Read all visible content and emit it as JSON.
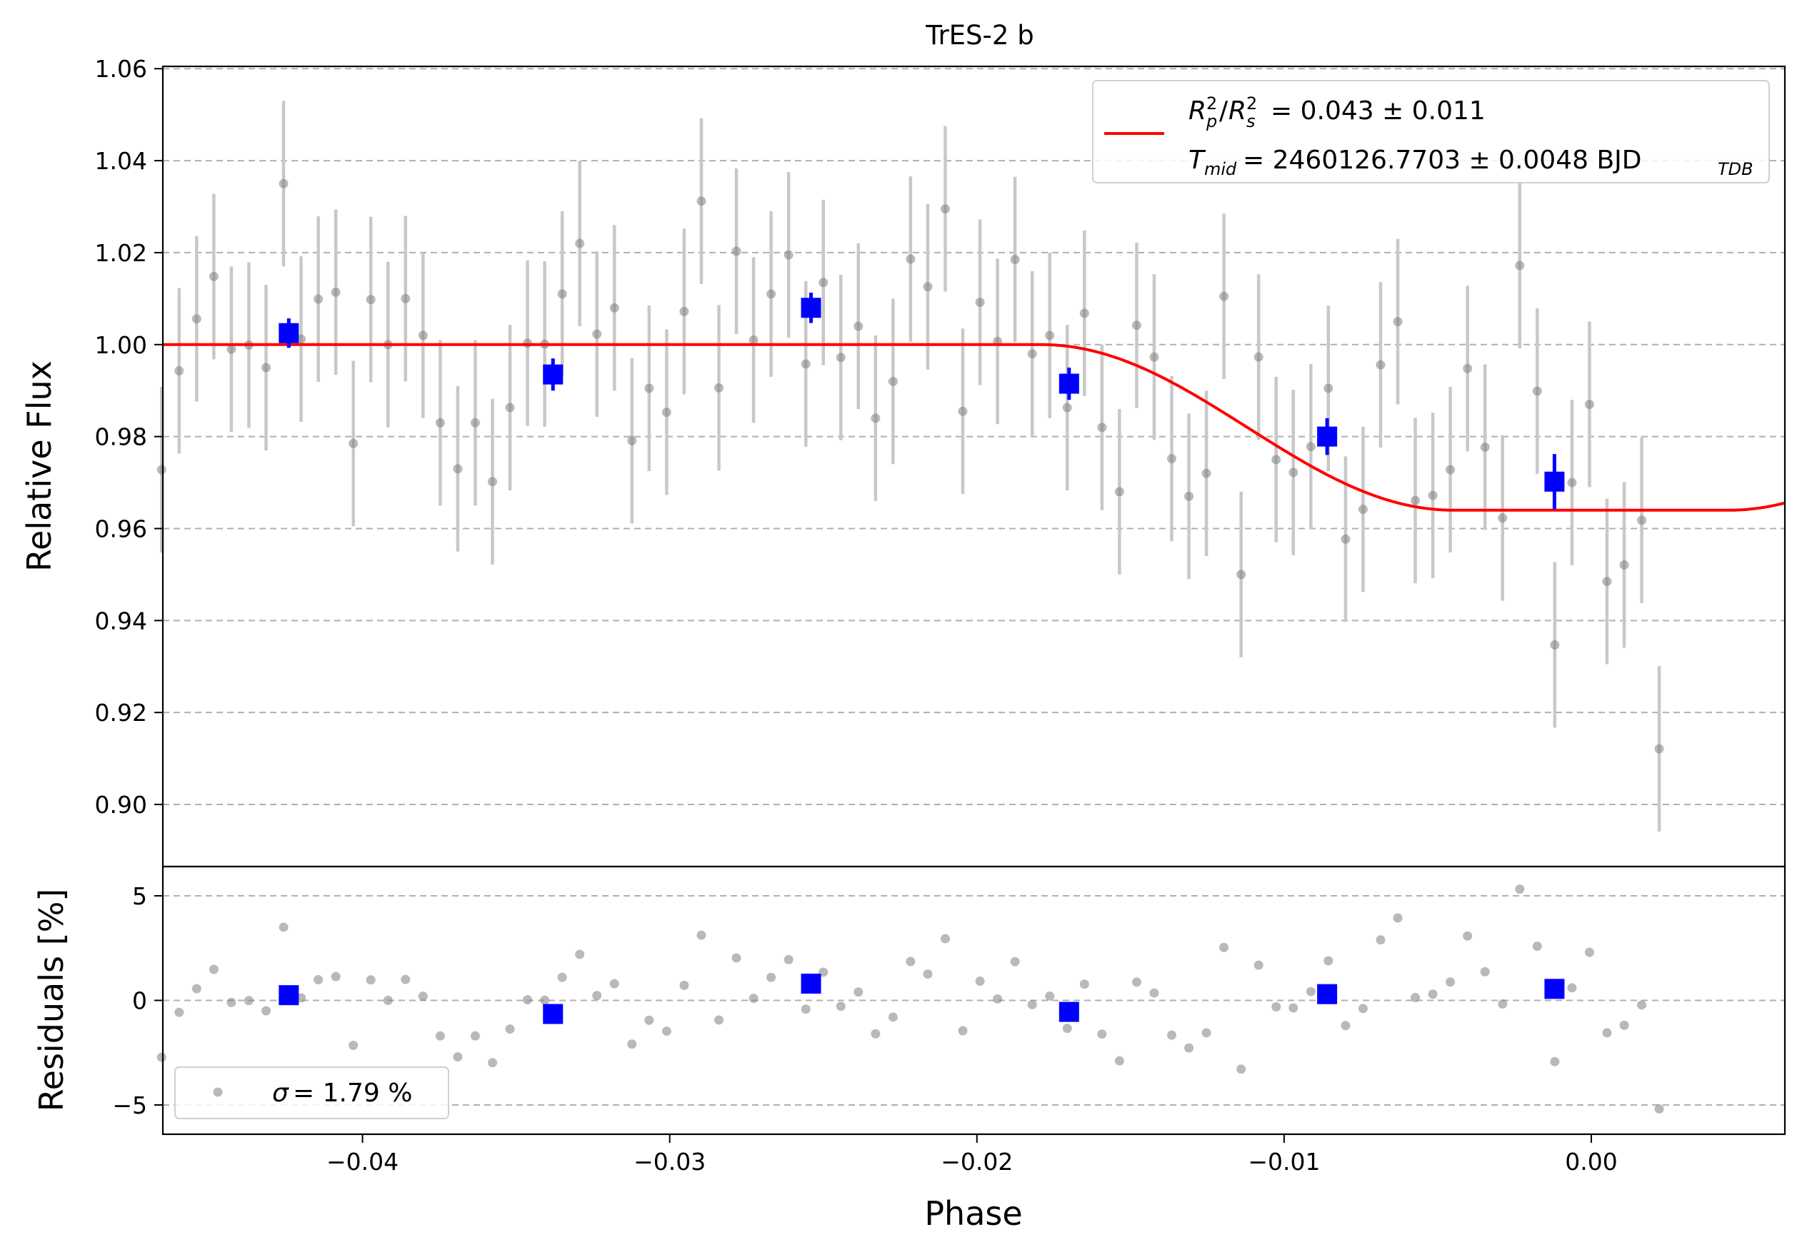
{
  "chart_data": [
    {
      "panel": "lightcurve",
      "type": "scatter",
      "title": "TrES-2 b",
      "xlabel": "",
      "ylabel": "Relative Flux",
      "xlim": [
        -0.0465,
        0.0063
      ],
      "ylim": [
        0.8865,
        1.0605
      ],
      "yticks": [
        0.9,
        0.92,
        0.94,
        0.96,
        0.98,
        1.0,
        1.02,
        1.04,
        1.06
      ],
      "ytick_labels": [
        "0.90",
        "0.92",
        "0.94",
        "0.96",
        "0.98",
        "1.00",
        "1.02",
        "1.04",
        "1.06"
      ],
      "grid": "horizontal dashed",
      "legend_position": "top-right",
      "colors": {
        "raw": "#808080",
        "errorbar": "#c8c8c8",
        "binned": "#0000ff",
        "model": "#ff0000"
      },
      "legend": {
        "ratio_label": "Rp2/Rs2",
        "ratio_value": "= 0.043 ± 0.011",
        "tmid_label": "Tmid",
        "tmid_value": "= 2460126.7703 ± 0.0048 BJD",
        "tmid_sub": "TDB"
      },
      "model": {
        "baseline": 1.0,
        "depth": 0.036,
        "t1": -0.0179,
        "t2": -0.0045,
        "t3": 0.0045,
        "t4": 0.0179,
        "tc": 0.0
      },
      "raw_err": 0.018,
      "raw": [
        [
          -0.04654,
          0.9728
        ],
        [
          -0.04597,
          0.9943
        ],
        [
          -0.0454,
          1.0056
        ],
        [
          -0.04484,
          1.0148
        ],
        [
          -0.04427,
          0.999
        ],
        [
          -0.0437,
          0.9999
        ],
        [
          -0.04314,
          0.995
        ],
        [
          -0.04257,
          1.035
        ],
        [
          -0.042,
          1.0012
        ],
        [
          -0.04144,
          1.0099
        ],
        [
          -0.04087,
          1.0114
        ],
        [
          -0.0403,
          0.9785
        ],
        [
          -0.03973,
          1.0098
        ],
        [
          -0.03917,
          1.0
        ],
        [
          -0.0386,
          1.01
        ],
        [
          -0.03803,
          1.002
        ],
        [
          -0.03747,
          0.983
        ],
        [
          -0.0369,
          0.973
        ],
        [
          -0.03633,
          0.983
        ],
        [
          -0.03577,
          0.9702
        ],
        [
          -0.0352,
          0.9863
        ],
        [
          -0.03463,
          1.0003
        ],
        [
          -0.03407,
          1.0001
        ],
        [
          -0.0335,
          1.011
        ],
        [
          -0.03293,
          1.022
        ],
        [
          -0.03237,
          1.0023
        ],
        [
          -0.0318,
          1.008
        ],
        [
          -0.03123,
          0.9791
        ],
        [
          -0.03067,
          0.9905
        ],
        [
          -0.0301,
          0.9853
        ],
        [
          -0.02953,
          1.0072
        ],
        [
          -0.02897,
          1.0312
        ],
        [
          -0.0284,
          0.9906
        ],
        [
          -0.02783,
          1.0203
        ],
        [
          -0.02727,
          1.001
        ],
        [
          -0.0267,
          1.011
        ],
        [
          -0.02613,
          1.0195
        ],
        [
          -0.02557,
          0.9958
        ],
        [
          -0.025,
          1.0135
        ],
        [
          -0.02443,
          0.9972
        ],
        [
          -0.02386,
          1.004
        ],
        [
          -0.0233,
          0.984
        ],
        [
          -0.02273,
          0.992
        ],
        [
          -0.02216,
          1.0186
        ],
        [
          -0.0216,
          1.0126
        ],
        [
          -0.02103,
          1.0295
        ],
        [
          -0.02046,
          0.9855
        ],
        [
          -0.0199,
          1.0092
        ],
        [
          -0.01933,
          1.0007
        ],
        [
          -0.01876,
          1.0185
        ],
        [
          -0.0182,
          0.998
        ],
        [
          -0.01763,
          1.002
        ],
        [
          -0.01706,
          0.9863
        ],
        [
          -0.0165,
          1.0068
        ],
        [
          -0.01593,
          0.982
        ],
        [
          -0.01536,
          0.968
        ],
        [
          -0.0148,
          1.0042
        ],
        [
          -0.01423,
          0.9973
        ],
        [
          -0.01366,
          0.9752
        ],
        [
          -0.0131,
          0.967
        ],
        [
          -0.01253,
          0.972
        ],
        [
          -0.01196,
          1.0105
        ],
        [
          -0.0114,
          0.95
        ],
        [
          -0.01083,
          0.9973
        ],
        [
          -0.01026,
          0.975
        ],
        [
          -0.0097,
          0.9722
        ],
        [
          -0.00913,
          0.9778
        ],
        [
          -0.00856,
          0.9905
        ],
        [
          -0.008,
          0.9577
        ],
        [
          -0.00743,
          0.9642
        ],
        [
          -0.00686,
          0.9956
        ],
        [
          -0.0063,
          1.005
        ],
        [
          -0.00573,
          0.9661
        ],
        [
          -0.00516,
          0.9672
        ],
        [
          -0.00459,
          0.9728
        ],
        [
          -0.00403,
          0.9948
        ],
        [
          -0.00346,
          0.9777
        ],
        [
          -0.00289,
          0.9623
        ],
        [
          -0.00233,
          1.0172
        ],
        [
          -0.00176,
          0.9899
        ],
        [
          -0.00119,
          0.9347
        ],
        [
          -0.00063,
          0.97
        ],
        [
          -6e-05,
          0.987
        ],
        [
          0.00051,
          0.9485
        ],
        [
          0.00107,
          0.9521
        ],
        [
          0.00164,
          0.9618
        ],
        [
          0.00221,
          0.9121
        ]
      ],
      "binned": [
        {
          "x": -0.0424,
          "y": 1.0025,
          "err": 0.0032
        },
        {
          "x": -0.0338,
          "y": 0.9935,
          "err": 0.0035
        },
        {
          "x": -0.0254,
          "y": 1.008,
          "err": 0.0033
        },
        {
          "x": -0.017,
          "y": 0.9915,
          "err": 0.0035
        },
        {
          "x": -0.0086,
          "y": 0.98,
          "err": 0.004
        },
        {
          "x": -0.0012,
          "y": 0.9702,
          "err": 0.006
        }
      ]
    },
    {
      "panel": "residuals",
      "type": "scatter",
      "xlabel": "Phase",
      "ylabel": "Residuals [%]",
      "xlim": [
        -0.0465,
        0.0063
      ],
      "ylim": [
        -6.4,
        6.4
      ],
      "xticks": [
        -0.04,
        -0.03,
        -0.02,
        -0.01,
        0.0
      ],
      "xtick_labels": [
        "−0.04",
        "−0.03",
        "−0.02",
        "−0.01",
        "0.00"
      ],
      "yticks": [
        -5,
        0,
        5
      ],
      "ytick_labels": [
        "−5",
        "0",
        "5"
      ],
      "grid": "horizontal dashed",
      "legend_position": "bottom-left",
      "legend": {
        "sigma_symbol": "σ",
        "sigma_text": "= 1.79 %"
      },
      "binned": [
        [
          -0.0424,
          0.25
        ],
        [
          -0.0338,
          -0.65
        ],
        [
          -0.0254,
          0.8
        ],
        [
          -0.017,
          -0.55
        ],
        [
          -0.0086,
          0.3
        ],
        [
          -0.0012,
          0.55
        ]
      ]
    }
  ]
}
